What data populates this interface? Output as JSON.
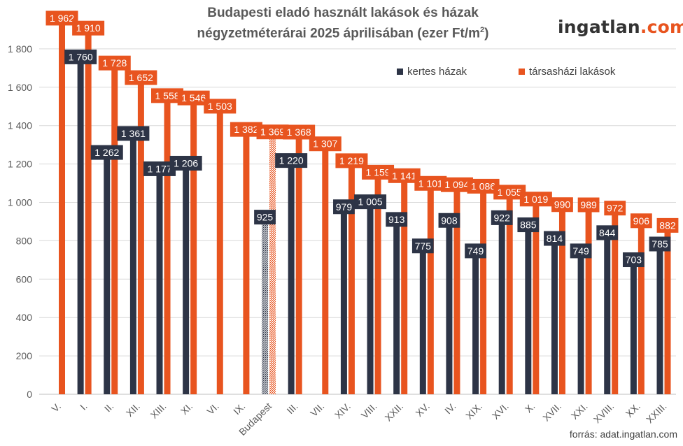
{
  "title_line1": "Budapesti eladó használt lakások és házak",
  "title_line2": "négyzetméterárai 2025 áprilisában (ezer Ft/m",
  "title_sup": "2",
  "title_close": ")",
  "brand_main": "ingatlan",
  "brand_tld": ".com",
  "source": "forrás: adat.ingatlan.com",
  "colors": {
    "houses": "#2d3446",
    "flats": "#e8541f",
    "grid": "#d9d9d9",
    "axis_text": "#595959"
  },
  "chart_data": {
    "type": "bar",
    "ylim": [
      0,
      2000
    ],
    "yticks": [
      "0",
      "200",
      "400",
      "600",
      "800",
      "1 000",
      "1 200",
      "1 400",
      "1 600",
      "1 800"
    ],
    "ytick_values": [
      0,
      200,
      400,
      600,
      800,
      1000,
      1200,
      1400,
      1600,
      1800
    ],
    "grid": true,
    "legend_position": "top-right",
    "categories": [
      "V.",
      "I.",
      "II.",
      "XII.",
      "XIII.",
      "XI.",
      "VI.",
      "IX.",
      "Budapest",
      "III.",
      "VII.",
      "XIV.",
      "VIII.",
      "XXII.",
      "XV.",
      "IV.",
      "XIX.",
      "XVI.",
      "X.",
      "XVII.",
      "XXI.",
      "XVIII.",
      "XX.",
      "XXIII."
    ],
    "series": [
      {
        "name": "kertes házak",
        "values": [
          null,
          1760,
          1262,
          1361,
          1177,
          1206,
          null,
          null,
          925,
          1220,
          null,
          979,
          1005,
          913,
          775,
          908,
          749,
          922,
          885,
          814,
          749,
          844,
          703,
          785
        ],
        "labels": [
          "",
          "1 760",
          "1 262",
          "1 361",
          "1 177",
          "1 206",
          "",
          "",
          "925",
          "1 220",
          "",
          "979",
          "1 005",
          "913",
          "775",
          "908",
          "749",
          "922",
          "885",
          "814",
          "749",
          "844",
          "703",
          "785"
        ]
      },
      {
        "name": "társasházi lakások",
        "values": [
          1962,
          1910,
          1728,
          1652,
          1558,
          1546,
          1503,
          1382,
          1369,
          1368,
          1307,
          1219,
          1159,
          1141,
          1101,
          1094,
          1086,
          1055,
          1019,
          990,
          989,
          972,
          906,
          882
        ],
        "labels": [
          "1 962",
          "1 910",
          "1 728",
          "1 652",
          "1 558",
          "1 546",
          "1 503",
          "1 382",
          "1 369",
          "1 368",
          "1 307",
          "1 219",
          "1 159",
          "1 141",
          "1 101",
          "1 094",
          "1 086",
          "1 055",
          "1 019",
          "990",
          "989",
          "972",
          "906",
          "882"
        ]
      }
    ],
    "highlight_category": "Budapest"
  }
}
